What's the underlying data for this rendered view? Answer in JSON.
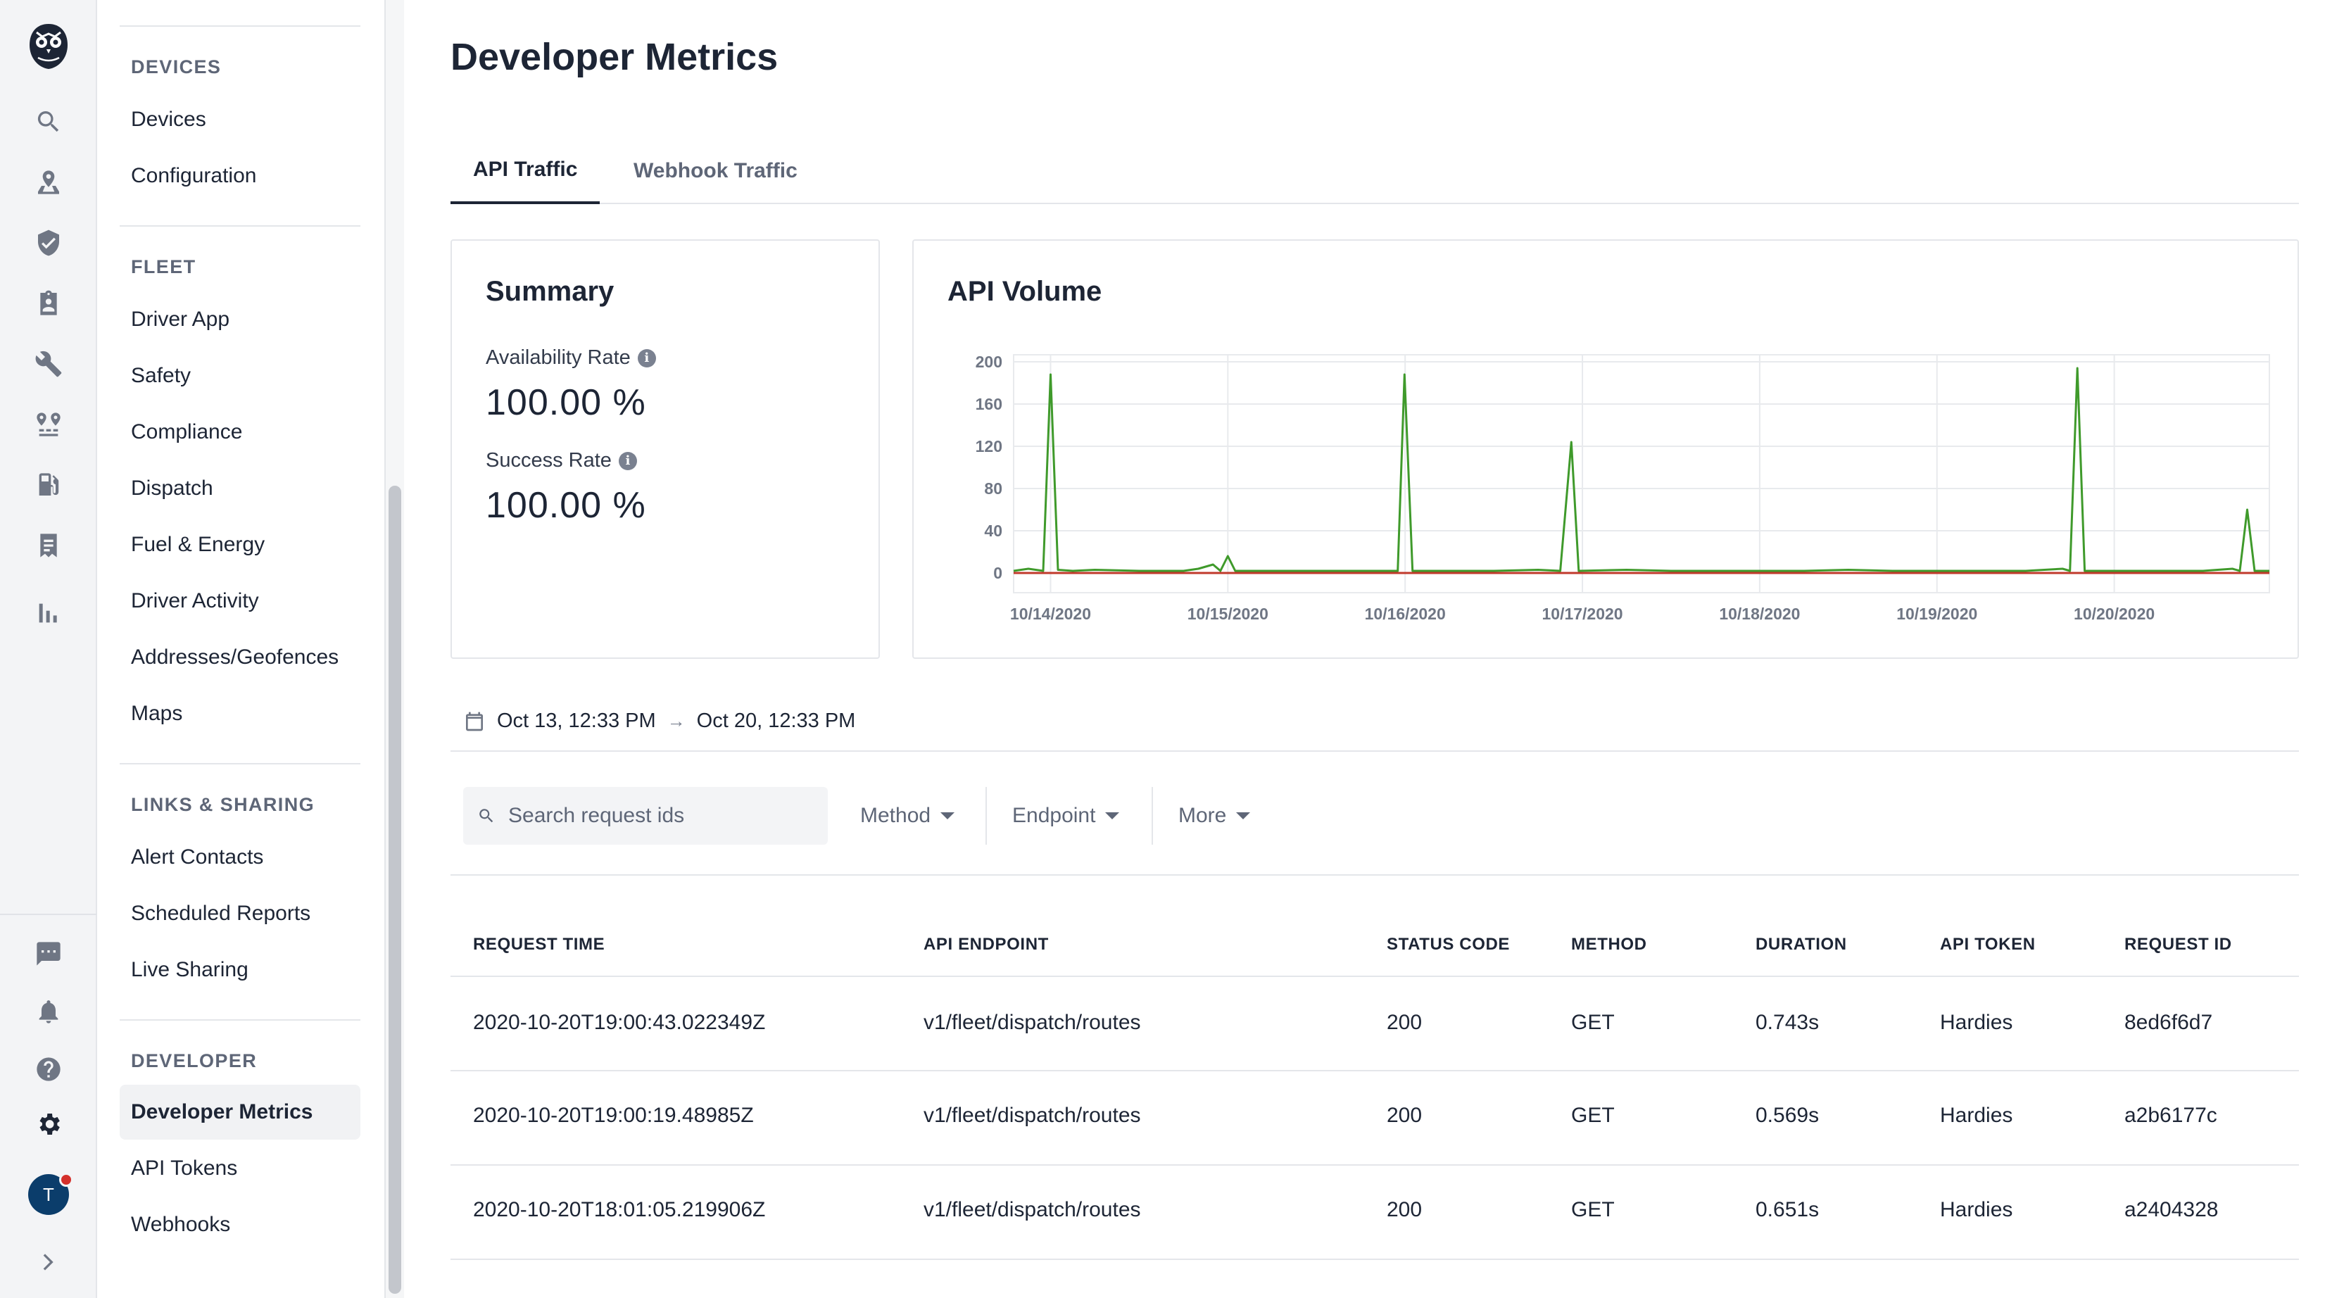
{
  "rail": {
    "icons": [
      "search-icon",
      "map-pin-icon",
      "shield-icon",
      "clipboard-icon",
      "wrench-icon",
      "route-icon",
      "fuel-icon",
      "document-icon",
      "bar-chart-icon"
    ],
    "bottom_icons": [
      "message-icon",
      "bell-icon",
      "help-icon",
      "gear-icon"
    ],
    "avatar_initial": "T",
    "expand_icon": "chevron-right-icon"
  },
  "nav": {
    "sections": [
      {
        "title": "DEVICES",
        "items": [
          "Devices",
          "Configuration"
        ]
      },
      {
        "title": "FLEET",
        "items": [
          "Driver App",
          "Safety",
          "Compliance",
          "Dispatch",
          "Fuel & Energy",
          "Driver Activity",
          "Addresses/Geofences",
          "Maps"
        ]
      },
      {
        "title": "LINKS & SHARING",
        "items": [
          "Alert Contacts",
          "Scheduled Reports",
          "Live Sharing"
        ]
      },
      {
        "title": "DEVELOPER",
        "items": [
          "Developer Metrics",
          "API Tokens",
          "Webhooks"
        ]
      }
    ],
    "active_item": "Developer Metrics"
  },
  "page": {
    "title": "Developer Metrics",
    "tabs": [
      "API Traffic",
      "Webhook Traffic"
    ],
    "active_tab": "API Traffic"
  },
  "summary": {
    "title": "Summary",
    "availability_label": "Availability Rate",
    "availability_value": "100.00 %",
    "success_label": "Success Rate",
    "success_value": "100.00 %"
  },
  "volume": {
    "title": "API Volume"
  },
  "chart_data": {
    "type": "line",
    "title": "API Volume",
    "xlabel": "",
    "ylabel": "",
    "x_ticks": [
      "10/14/2020",
      "10/15/2020",
      "10/16/2020",
      "10/17/2020",
      "10/18/2020",
      "10/19/2020",
      "10/20/2020"
    ],
    "y_ticks": [
      0,
      40,
      80,
      120,
      160,
      200
    ],
    "ylim": [
      0,
      200
    ],
    "xlim": [
      "2020-10-13T19:00",
      "2020-10-20T21:00"
    ],
    "grid": true,
    "legend": "none",
    "series": [
      {
        "color": "#3f9a2b",
        "points": [
          [
            "2020-10-13T19:00",
            2
          ],
          [
            "2020-10-13T21:00",
            4
          ],
          [
            "2020-10-13T23:00",
            2
          ],
          [
            "2020-10-14T00:00",
            188
          ],
          [
            "2020-10-14T01:00",
            3
          ],
          [
            "2020-10-14T03:00",
            2
          ],
          [
            "2020-10-14T06:00",
            3
          ],
          [
            "2020-10-14T12:00",
            2
          ],
          [
            "2020-10-14T18:00",
            2
          ],
          [
            "2020-10-14T20:00",
            4
          ],
          [
            "2020-10-14T22:00",
            8
          ],
          [
            "2020-10-14T23:00",
            2
          ],
          [
            "2020-10-15T00:00",
            16
          ],
          [
            "2020-10-15T01:00",
            2
          ],
          [
            "2020-10-15T06:00",
            2
          ],
          [
            "2020-10-15T12:00",
            2
          ],
          [
            "2020-10-15T18:00",
            2
          ],
          [
            "2020-10-15T23:00",
            2
          ],
          [
            "2020-10-15T23:55",
            188
          ],
          [
            "2020-10-16T01:00",
            2
          ],
          [
            "2020-10-16T06:00",
            2
          ],
          [
            "2020-10-16T12:00",
            2
          ],
          [
            "2020-10-16T18:00",
            3
          ],
          [
            "2020-10-16T21:00",
            2
          ],
          [
            "2020-10-16T22:30",
            124
          ],
          [
            "2020-10-16T23:30",
            2
          ],
          [
            "2020-10-17T06:00",
            3
          ],
          [
            "2020-10-17T12:00",
            2
          ],
          [
            "2020-10-18T06:00",
            2
          ],
          [
            "2020-10-18T12:00",
            3
          ],
          [
            "2020-10-18T18:00",
            2
          ],
          [
            "2020-10-19T00:00",
            2
          ],
          [
            "2020-10-19T06:00",
            2
          ],
          [
            "2020-10-19T12:00",
            2
          ],
          [
            "2020-10-19T17:00",
            4
          ],
          [
            "2020-10-19T18:00",
            2
          ],
          [
            "2020-10-19T19:00",
            194
          ],
          [
            "2020-10-19T20:00",
            2
          ],
          [
            "2020-10-20T06:00",
            2
          ],
          [
            "2020-10-20T12:00",
            2
          ],
          [
            "2020-10-20T16:00",
            4
          ],
          [
            "2020-10-20T17:00",
            2
          ],
          [
            "2020-10-20T18:00",
            60
          ],
          [
            "2020-10-20T19:00",
            2
          ],
          [
            "2020-10-20T21:00",
            2
          ]
        ]
      },
      {
        "color": "#c0392b",
        "points": [
          [
            "2020-10-13T19:00",
            0
          ],
          [
            "2020-10-20T21:00",
            0
          ]
        ]
      }
    ]
  },
  "filters": {
    "date_from": "Oct 13, 12:33 PM",
    "date_to": "Oct 20, 12:33 PM",
    "search_placeholder": "Search request ids",
    "method_label": "Method",
    "endpoint_label": "Endpoint",
    "more_label": "More"
  },
  "table": {
    "headers": [
      "REQUEST TIME",
      "API ENDPOINT",
      "STATUS CODE",
      "METHOD",
      "DURATION",
      "API TOKEN",
      "REQUEST ID"
    ],
    "rows": [
      [
        "2020-10-20T19:00:43.022349Z",
        "v1/fleet/dispatch/routes",
        "200",
        "GET",
        "0.743s",
        "Hardies",
        "8ed6f6d7"
      ],
      [
        "2020-10-20T19:00:19.48985Z",
        "v1/fleet/dispatch/routes",
        "200",
        "GET",
        "0.569s",
        "Hardies",
        "a2b6177c"
      ],
      [
        "2020-10-20T18:01:05.219906Z",
        "v1/fleet/dispatch/routes",
        "200",
        "GET",
        "0.651s",
        "Hardies",
        "a2404328"
      ]
    ]
  }
}
